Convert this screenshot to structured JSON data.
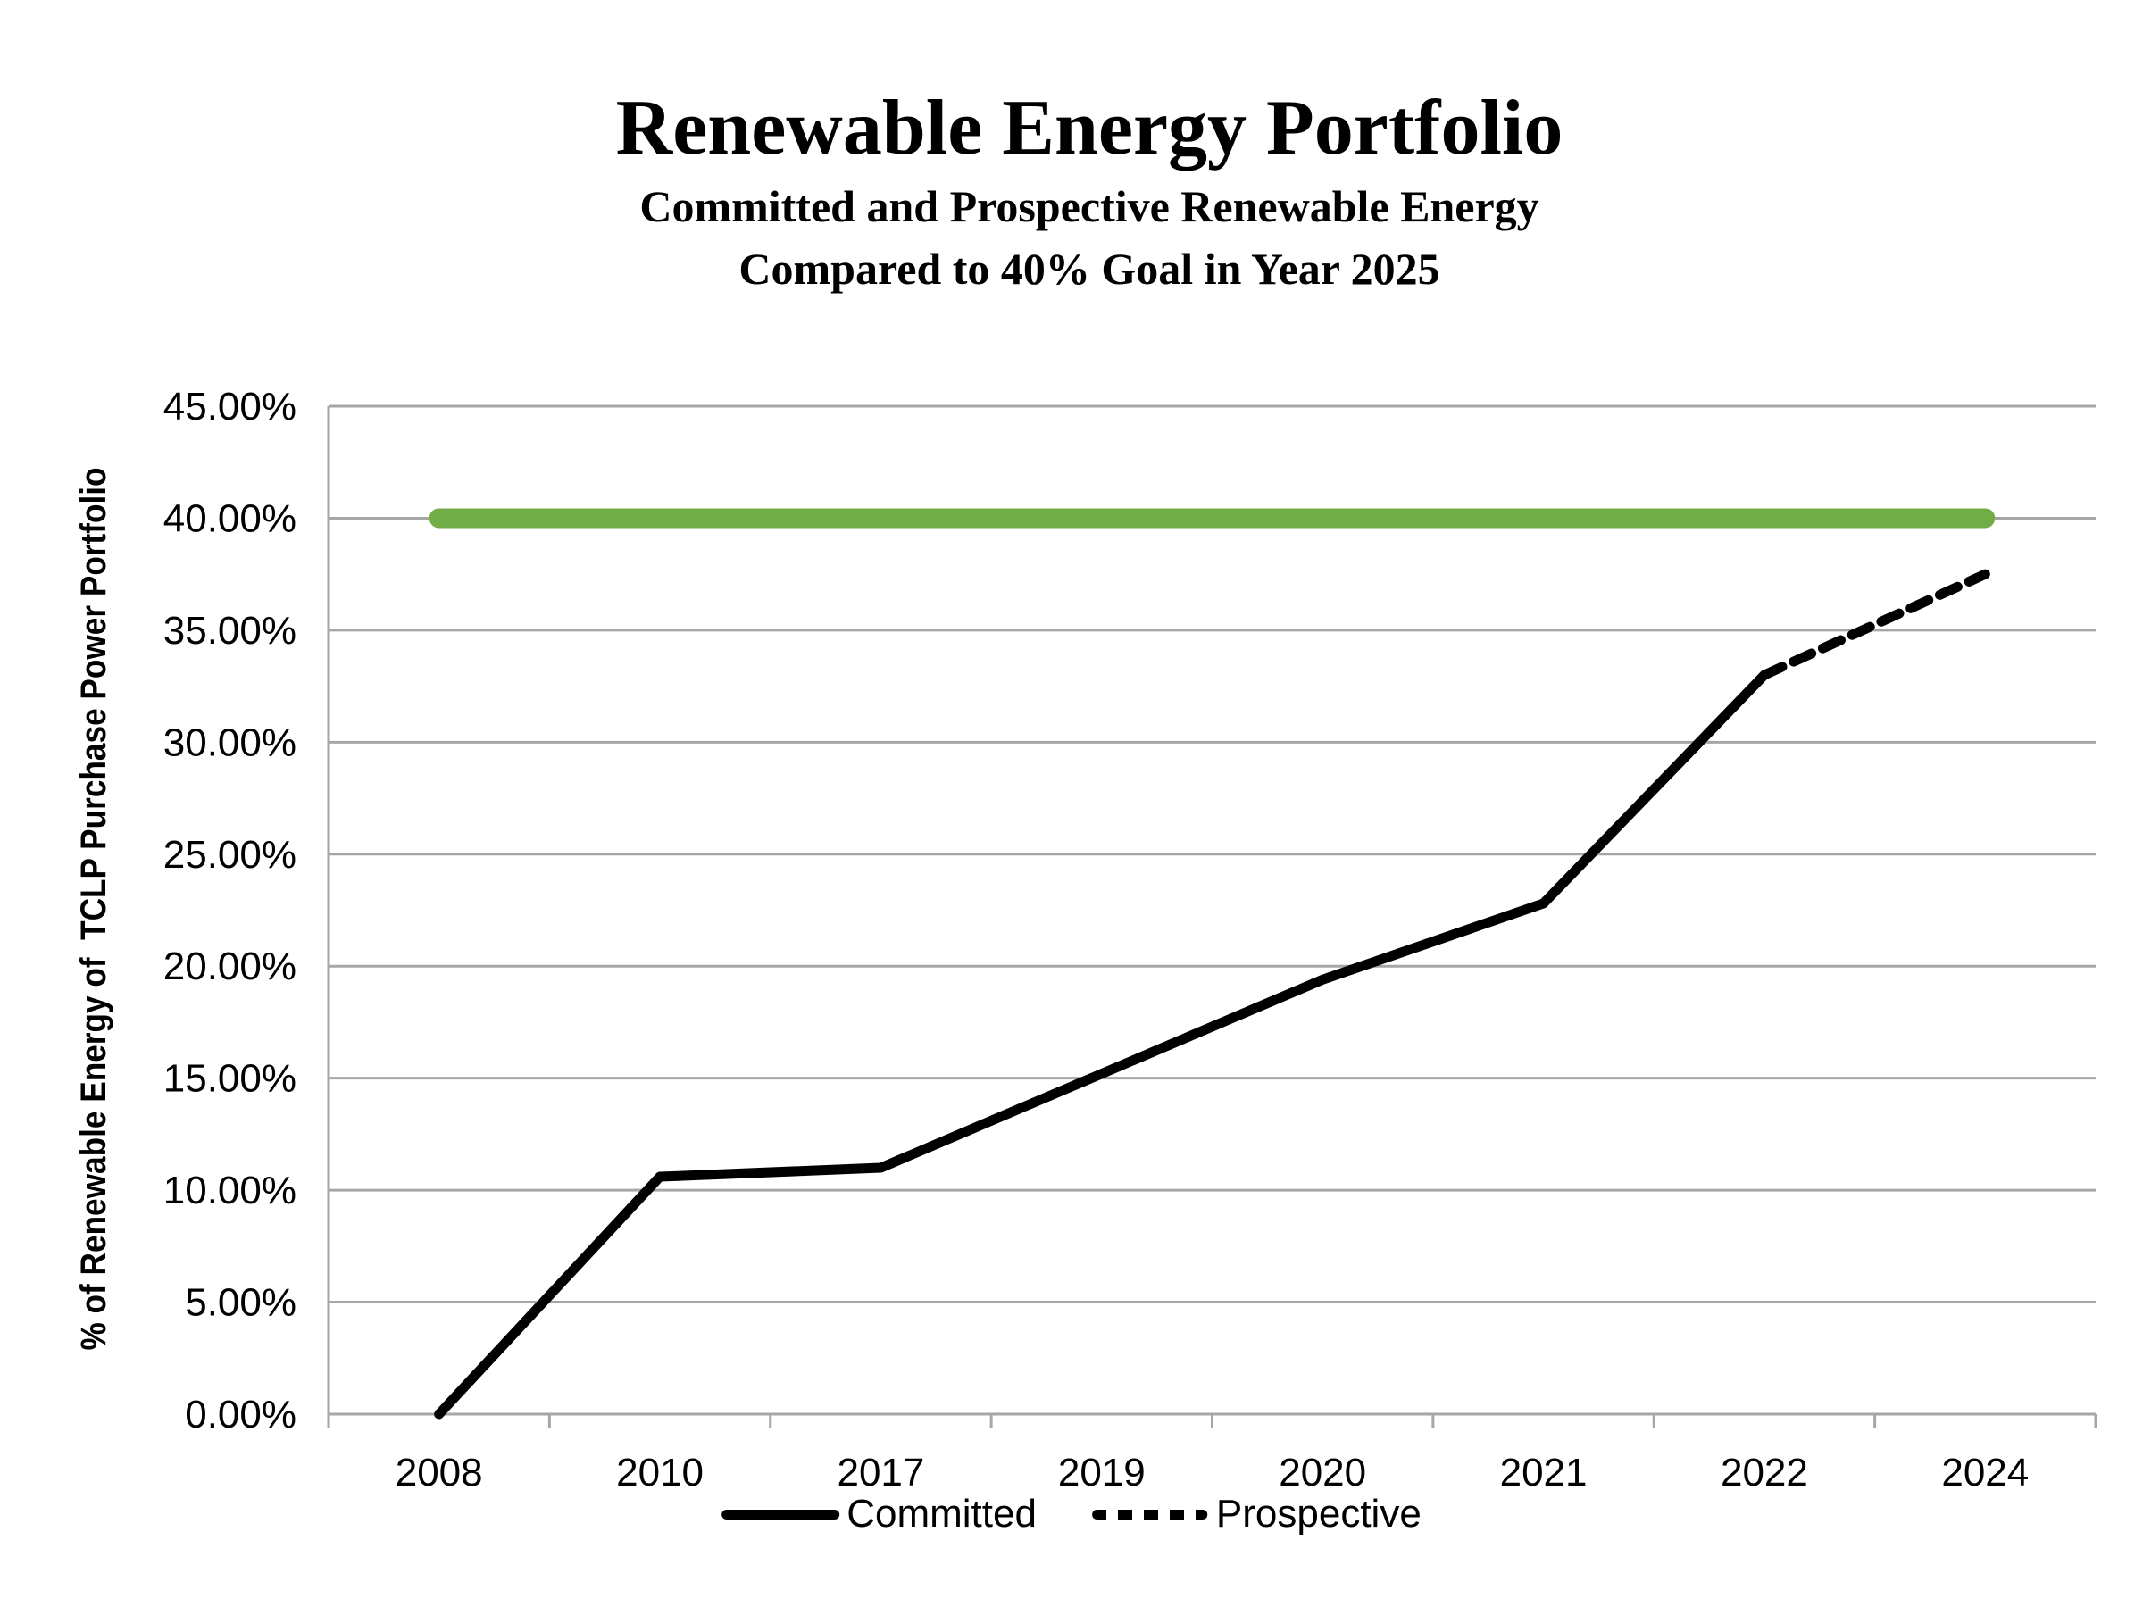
{
  "chart": {
    "title": "Renewable Energy Portfolio",
    "subtitle_line1": "Committed and Prospective Renewable Energy",
    "subtitle_line2": "Compared to 40% Goal in Year 2025",
    "y_axis_title": "% of Renewable Energy of  TCLP Purchase Power Portfolio"
  },
  "legend": {
    "committed_label": "Committed",
    "prospective_label": "Prospective"
  },
  "colors": {
    "goal_line": "#70AD47",
    "data_line": "#000000",
    "gridline": "#A6A6A6",
    "background": "#FFFFFF",
    "text": "#000000"
  },
  "chart_data": {
    "type": "line",
    "categories": [
      "2008",
      "2010",
      "2017",
      "2019",
      "2020",
      "2021",
      "2022",
      "2024"
    ],
    "series": [
      {
        "name": "Committed",
        "style": "solid",
        "color": "#000000",
        "values": [
          0.0,
          10.6,
          11.0,
          15.2,
          19.4,
          22.8,
          33.0,
          null
        ]
      },
      {
        "name": "Prospective",
        "style": "dashed",
        "color": "#000000",
        "values": [
          null,
          null,
          null,
          null,
          null,
          null,
          33.0,
          37.5
        ]
      },
      {
        "name": "40% Goal",
        "style": "goal",
        "color": "#70AD47",
        "values": [
          40,
          40,
          40,
          40,
          40,
          40,
          40,
          40
        ]
      }
    ],
    "ylim": [
      0,
      45
    ],
    "y_tick_step": 5,
    "y_tick_labels": [
      "0.00%",
      "5.00%",
      "10.00%",
      "15.00%",
      "20.00%",
      "25.00%",
      "30.00%",
      "35.00%",
      "40.00%",
      "45.00%"
    ],
    "grid": "horizontal-only",
    "legend_position": "bottom"
  }
}
